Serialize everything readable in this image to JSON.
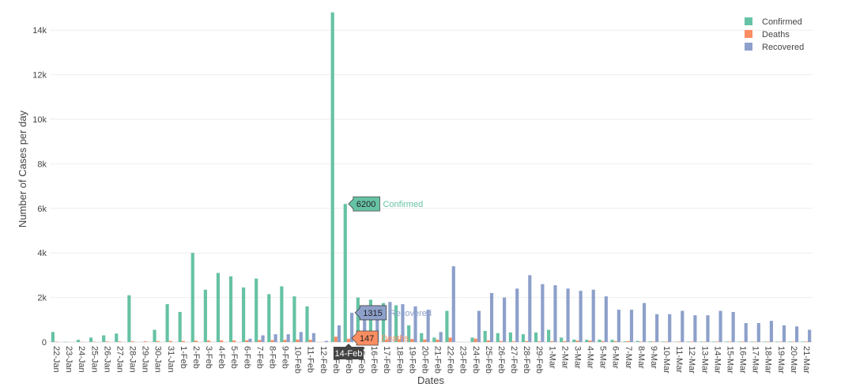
{
  "chart_data": {
    "type": "bar",
    "title": "",
    "xlabel": "Dates",
    "ylabel": "Number of Cases per day",
    "ylim": [
      0,
      15000
    ],
    "yticks": [
      0,
      2000,
      4000,
      6000,
      8000,
      10000,
      12000,
      14000
    ],
    "ytick_labels": [
      "0",
      "2k",
      "4k",
      "6k",
      "8k",
      "10k",
      "12k",
      "14k"
    ],
    "grid": "horizontal",
    "legend_position": "top-right",
    "categories": [
      "22-Jan",
      "23-Jan",
      "24-Jan",
      "25-Jan",
      "26-Jan",
      "27-Jan",
      "28-Jan",
      "29-Jan",
      "30-Jan",
      "31-Jan",
      "1-Feb",
      "2-Feb",
      "3-Feb",
      "4-Feb",
      "5-Feb",
      "6-Feb",
      "7-Feb",
      "8-Feb",
      "9-Feb",
      "10-Feb",
      "11-Feb",
      "12-Feb",
      "13-Feb",
      "14-Feb",
      "15-Feb",
      "16-Feb",
      "17-Feb",
      "18-Feb",
      "19-Feb",
      "20-Feb",
      "21-Feb",
      "22-Feb",
      "23-Feb",
      "24-Feb",
      "25-Feb",
      "26-Feb",
      "27-Feb",
      "28-Feb",
      "29-Feb",
      "1-Mar",
      "2-Mar",
      "3-Mar",
      "4-Mar",
      "5-Mar",
      "6-Mar",
      "7-Mar",
      "8-Mar",
      "9-Mar",
      "10-Mar",
      "11-Mar",
      "12-Mar",
      "13-Mar",
      "14-Mar",
      "15-Mar",
      "16-Mar",
      "17-Mar",
      "18-Mar",
      "19-Mar",
      "20-Mar",
      "21-Mar"
    ],
    "series": [
      {
        "name": "Confirmed",
        "color": "#66c2a5",
        "values": [
          450,
          10,
          100,
          200,
          300,
          380,
          2100,
          0,
          550,
          1700,
          1350,
          4000,
          2350,
          3100,
          2950,
          2450,
          2850,
          2150,
          2500,
          2050,
          1600,
          0,
          14800,
          6200,
          2000,
          1900,
          1750,
          1650,
          750,
          400,
          200,
          1400,
          0,
          200,
          500,
          400,
          430,
          350,
          430,
          550,
          200,
          110,
          100,
          110,
          100,
          30,
          50,
          30,
          20,
          10,
          20,
          20,
          20,
          20,
          20,
          20,
          20,
          20,
          20,
          20
        ]
      },
      {
        "name": "Deaths",
        "color": "#fc8d62",
        "values": [
          17,
          0,
          10,
          15,
          25,
          25,
          30,
          30,
          40,
          45,
          45,
          60,
          65,
          70,
          70,
          75,
          90,
          85,
          95,
          110,
          100,
          5,
          240,
          147,
          140,
          140,
          100,
          130,
          135,
          115,
          110,
          200,
          0,
          150,
          70,
          40,
          30,
          40,
          30,
          40,
          40,
          60,
          60,
          40,
          40,
          40,
          20,
          20,
          20,
          20,
          20,
          15,
          20,
          20,
          20,
          15,
          20,
          20,
          20,
          20
        ]
      },
      {
        "name": "Recovered",
        "color": "#8da0cb",
        "values": [
          0,
          0,
          0,
          0,
          0,
          0,
          0,
          0,
          0,
          0,
          0,
          0,
          0,
          0,
          0,
          150,
          300,
          350,
          350,
          450,
          400,
          50,
          750,
          1315,
          1400,
          1650,
          1800,
          1700,
          1600,
          1450,
          450,
          3400,
          0,
          1400,
          2200,
          2000,
          2400,
          3000,
          2600,
          2550,
          2400,
          2300,
          2350,
          2050,
          1450,
          1450,
          1750,
          1250,
          1250,
          1400,
          1200,
          1200,
          1400,
          1350,
          850,
          850,
          950,
          750,
          700,
          550
        ]
      }
    ],
    "hover": {
      "category": "14-Feb",
      "labels": [
        {
          "series": "Confirmed",
          "value": "6200"
        },
        {
          "series": "Recovered",
          "value": "1315"
        },
        {
          "series": "Deaths",
          "value": "147"
        }
      ]
    }
  }
}
